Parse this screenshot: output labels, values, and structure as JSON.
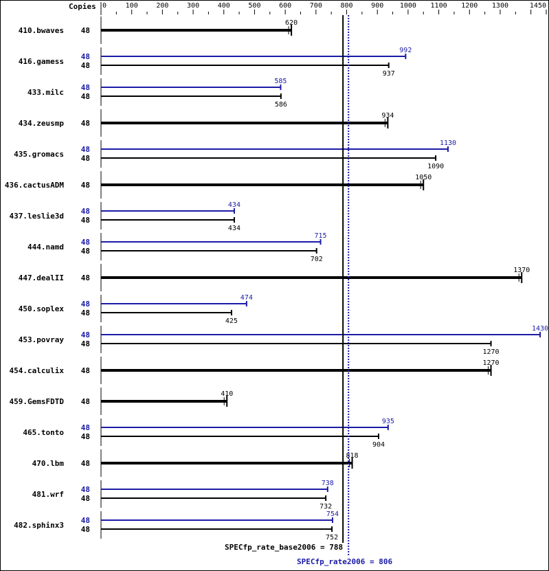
{
  "chart_data": {
    "type": "bar",
    "orientation": "horizontal",
    "copies_header": "Copies",
    "xlim": [
      0,
      1450
    ],
    "ticks": [
      0,
      100,
      200,
      300,
      400,
      500,
      600,
      700,
      800,
      900,
      1000,
      1100,
      1200,
      1300,
      1450
    ],
    "colors": {
      "base": "#000000",
      "peak": "#1a1aa6"
    },
    "benchmarks": [
      {
        "name": "410.bwaves",
        "copies": "48",
        "base": 620,
        "peak": null
      },
      {
        "name": "416.gamess",
        "copies": "48",
        "peak_copies": "48",
        "base": 937,
        "peak": 992
      },
      {
        "name": "433.milc",
        "copies": "48",
        "peak_copies": "48",
        "base": 586,
        "peak": 585
      },
      {
        "name": "434.zeusmp",
        "copies": "48",
        "base": 934,
        "peak": null
      },
      {
        "name": "435.gromacs",
        "copies": "48",
        "peak_copies": "48",
        "base": 1090,
        "peak": 1130
      },
      {
        "name": "436.cactusADM",
        "copies": "48",
        "base": 1050,
        "peak": null
      },
      {
        "name": "437.leslie3d",
        "copies": "48",
        "peak_copies": "48",
        "base": 434,
        "peak": 434
      },
      {
        "name": "444.namd",
        "copies": "48",
        "peak_copies": "48",
        "base": 702,
        "peak": 715
      },
      {
        "name": "447.dealII",
        "copies": "48",
        "base": 1370,
        "peak": null
      },
      {
        "name": "450.soplex",
        "copies": "48",
        "peak_copies": "48",
        "base": 425,
        "peak": 474
      },
      {
        "name": "453.povray",
        "copies": "48",
        "peak_copies": "48",
        "base": 1270,
        "peak": 1430
      },
      {
        "name": "454.calculix",
        "copies": "48",
        "base": 1270,
        "peak": null
      },
      {
        "name": "459.GemsFDTD",
        "copies": "48",
        "base": 410,
        "peak": null
      },
      {
        "name": "465.tonto",
        "copies": "48",
        "peak_copies": "48",
        "base": 904,
        "peak": 935
      },
      {
        "name": "470.lbm",
        "copies": "48",
        "base": 818,
        "peak": null
      },
      {
        "name": "481.wrf",
        "copies": "48",
        "peak_copies": "48",
        "base": 732,
        "peak": 738
      },
      {
        "name": "482.sphinx3",
        "copies": "48",
        "peak_copies": "48",
        "base": 752,
        "peak": 754
      }
    ],
    "base_score": {
      "label": "SPECfp_rate_base2006 = 788",
      "value": 788
    },
    "peak_score": {
      "label": "SPECfp_rate2006 = 806",
      "value": 806
    }
  }
}
